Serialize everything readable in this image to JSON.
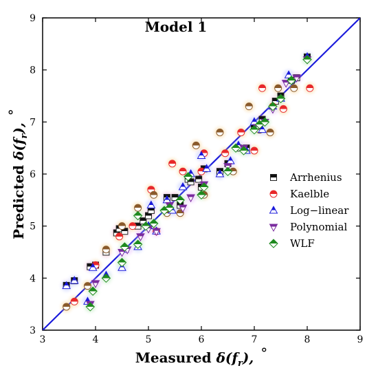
{
  "chart_data": {
    "type": "scatter",
    "title": "Model 1",
    "xlabel": "Measured δ(f_r), °",
    "ylabel": "Predicted δ(f_r), °",
    "xlim": [
      3,
      9
    ],
    "ylim": [
      3,
      9
    ],
    "xticks": [
      3,
      4,
      5,
      6,
      7,
      8,
      9
    ],
    "yticks": [
      3,
      4,
      5,
      6,
      7,
      8,
      9
    ],
    "reference_line": {
      "from": [
        3,
        3
      ],
      "to": [
        9,
        9
      ],
      "color": "#1a1adb"
    },
    "legend_position": "right",
    "series": [
      {
        "name": "Arrhenius",
        "marker": "square-half",
        "color": "#222222",
        "points": [
          [
            3.45,
            3.86
          ],
          [
            3.6,
            3.95
          ],
          [
            3.9,
            4.22
          ],
          [
            4.0,
            4.25
          ],
          [
            4.2,
            4.5
          ],
          [
            4.4,
            4.87
          ],
          [
            4.45,
            4.95
          ],
          [
            4.55,
            4.9
          ],
          [
            4.8,
            5.0
          ],
          [
            4.9,
            5.1
          ],
          [
            5.0,
            5.2
          ],
          [
            5.05,
            5.3
          ],
          [
            5.35,
            5.55
          ],
          [
            5.5,
            5.55
          ],
          [
            5.6,
            5.4
          ],
          [
            5.75,
            5.9
          ],
          [
            5.8,
            5.85
          ],
          [
            5.95,
            5.9
          ],
          [
            6.0,
            5.75
          ],
          [
            6.05,
            6.1
          ],
          [
            6.35,
            6.05
          ],
          [
            6.5,
            6.2
          ],
          [
            6.7,
            6.5
          ],
          [
            6.85,
            6.5
          ],
          [
            7.0,
            6.9
          ],
          [
            7.15,
            7.05
          ],
          [
            7.4,
            7.4
          ],
          [
            7.5,
            7.5
          ],
          [
            7.7,
            7.8
          ],
          [
            7.8,
            7.85
          ],
          [
            8.0,
            8.25
          ]
        ]
      },
      {
        "name": "Kaelble",
        "marker": "circle-half",
        "color": "#e8282a",
        "color2": "#8a5a2b",
        "points": [
          [
            3.45,
            3.45
          ],
          [
            3.6,
            3.55
          ],
          [
            3.85,
            3.85
          ],
          [
            4.0,
            4.25
          ],
          [
            4.2,
            4.55
          ],
          [
            4.45,
            4.8
          ],
          [
            4.5,
            5.0
          ],
          [
            4.7,
            5.0
          ],
          [
            4.8,
            5.35
          ],
          [
            5.05,
            5.7
          ],
          [
            5.1,
            5.6
          ],
          [
            5.15,
            4.9
          ],
          [
            5.35,
            5.25
          ],
          [
            5.45,
            6.2
          ],
          [
            5.6,
            5.25
          ],
          [
            5.65,
            6.05
          ],
          [
            5.9,
            6.55
          ],
          [
            6.0,
            6.05
          ],
          [
            6.05,
            5.6
          ],
          [
            6.05,
            6.4
          ],
          [
            6.35,
            6.8
          ],
          [
            6.45,
            6.4
          ],
          [
            6.6,
            6.05
          ],
          [
            6.75,
            6.8
          ],
          [
            6.9,
            7.3
          ],
          [
            7.0,
            6.45
          ],
          [
            7.1,
            6.85
          ],
          [
            7.15,
            7.65
          ],
          [
            7.3,
            6.8
          ],
          [
            7.35,
            7.3
          ],
          [
            7.45,
            7.65
          ],
          [
            7.55,
            7.25
          ],
          [
            7.75,
            7.65
          ],
          [
            8.05,
            7.65
          ]
        ]
      },
      {
        "name": "Log−linear",
        "marker": "triangle-up",
        "color": "#1a1adb",
        "points": [
          [
            3.45,
            3.85
          ],
          [
            3.6,
            3.95
          ],
          [
            3.85,
            3.55
          ],
          [
            3.95,
            4.2
          ],
          [
            4.2,
            4.05
          ],
          [
            4.5,
            4.2
          ],
          [
            4.55,
            4.55
          ],
          [
            4.8,
            4.6
          ],
          [
            5.0,
            5.0
          ],
          [
            5.05,
            5.4
          ],
          [
            5.15,
            4.9
          ],
          [
            5.35,
            5.5
          ],
          [
            5.45,
            5.3
          ],
          [
            5.65,
            5.75
          ],
          [
            5.8,
            6.0
          ],
          [
            6.0,
            6.35
          ],
          [
            6.1,
            6.1
          ],
          [
            6.35,
            6.0
          ],
          [
            6.55,
            6.25
          ],
          [
            6.7,
            6.55
          ],
          [
            6.85,
            6.45
          ],
          [
            7.0,
            7.0
          ],
          [
            7.15,
            6.85
          ],
          [
            7.35,
            7.3
          ],
          [
            7.5,
            7.45
          ],
          [
            7.65,
            7.9
          ],
          [
            8.0,
            8.25
          ]
        ]
      },
      {
        "name": "Polynomial",
        "marker": "triangle-down",
        "color": "#7a2c9e",
        "points": [
          [
            3.9,
            3.5
          ],
          [
            4.0,
            3.9
          ],
          [
            4.5,
            4.5
          ],
          [
            4.6,
            4.55
          ],
          [
            4.85,
            4.8
          ],
          [
            5.0,
            4.95
          ],
          [
            5.15,
            4.9
          ],
          [
            5.4,
            5.4
          ],
          [
            5.65,
            5.35
          ],
          [
            5.8,
            5.55
          ],
          [
            6.05,
            5.8
          ],
          [
            6.5,
            6.15
          ],
          [
            6.8,
            6.5
          ],
          [
            7.05,
            6.9
          ],
          [
            7.2,
            7.0
          ],
          [
            7.35,
            7.25
          ],
          [
            7.6,
            7.75
          ],
          [
            7.8,
            7.85
          ],
          [
            8.0,
            8.2
          ]
        ]
      },
      {
        "name": "WLF",
        "marker": "diamond-half",
        "color": "#1e8a1e",
        "points": [
          [
            3.9,
            3.45
          ],
          [
            3.95,
            3.75
          ],
          [
            4.2,
            4.0
          ],
          [
            4.5,
            4.3
          ],
          [
            4.55,
            4.6
          ],
          [
            4.8,
            4.65
          ],
          [
            4.8,
            5.2
          ],
          [
            4.95,
            5.0
          ],
          [
            5.1,
            5.05
          ],
          [
            5.3,
            5.3
          ],
          [
            5.4,
            5.35
          ],
          [
            5.6,
            5.5
          ],
          [
            5.75,
            5.95
          ],
          [
            6.0,
            5.6
          ],
          [
            6.05,
            5.75
          ],
          [
            6.5,
            6.05
          ],
          [
            6.65,
            6.5
          ],
          [
            6.8,
            6.45
          ],
          [
            7.0,
            6.85
          ],
          [
            7.1,
            6.95
          ],
          [
            7.2,
            7.0
          ],
          [
            7.35,
            7.3
          ],
          [
            7.5,
            7.45
          ],
          [
            7.7,
            7.8
          ],
          [
            8.0,
            8.2
          ]
        ]
      }
    ]
  }
}
